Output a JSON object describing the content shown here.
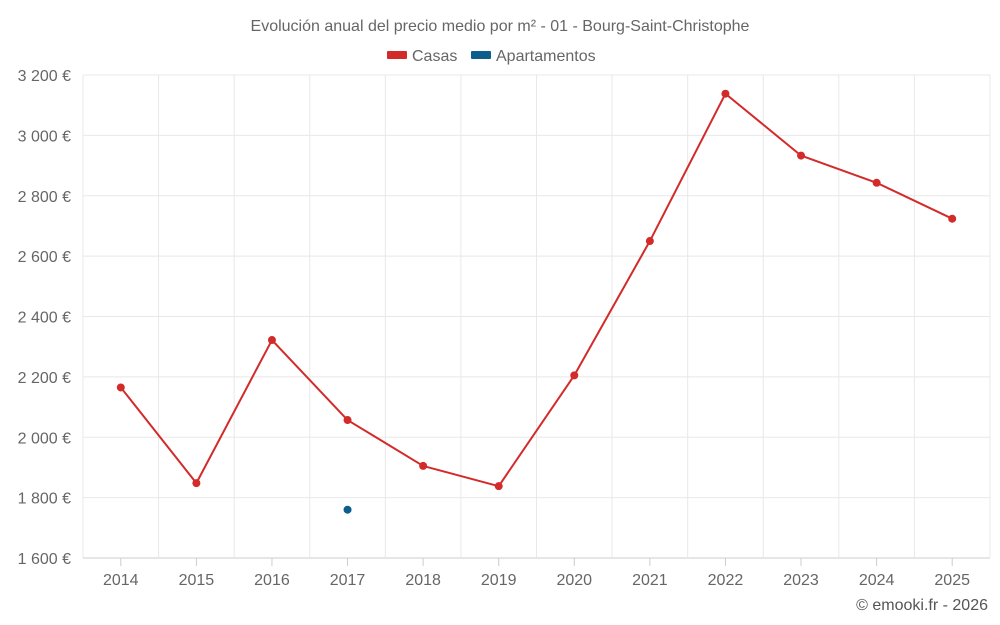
{
  "chart_data": {
    "type": "line",
    "title": "Evolución anual del precio medio por m² - 01 - Bourg-Saint-Christophe",
    "x": [
      "2014",
      "2015",
      "2016",
      "2017",
      "2018",
      "2019",
      "2020",
      "2021",
      "2022",
      "2023",
      "2024",
      "2025"
    ],
    "y_ticks": [
      1600,
      1800,
      2000,
      2200,
      2400,
      2600,
      2800,
      3000,
      3200
    ],
    "y_tick_labels": [
      "1 600 €",
      "1 800 €",
      "2 000 €",
      "2 200 €",
      "2 400 €",
      "2 600 €",
      "2 800 €",
      "3 000 €",
      "3 200 €"
    ],
    "ylim": [
      1600,
      3200
    ],
    "grid": true,
    "legend_position": "top-center",
    "series": [
      {
        "name": "Casas",
        "color": "#d32a2a",
        "values": [
          2165,
          1848,
          2322,
          2057,
          1905,
          1838,
          2205,
          2650,
          3138,
          2933,
          2843,
          2724
        ]
      },
      {
        "name": "Apartamentos",
        "color": "#0d5e8c",
        "values": [
          null,
          null,
          null,
          1760,
          null,
          null,
          null,
          null,
          null,
          null,
          null,
          null
        ]
      }
    ],
    "credit": "© emooki.fr - 2026"
  }
}
